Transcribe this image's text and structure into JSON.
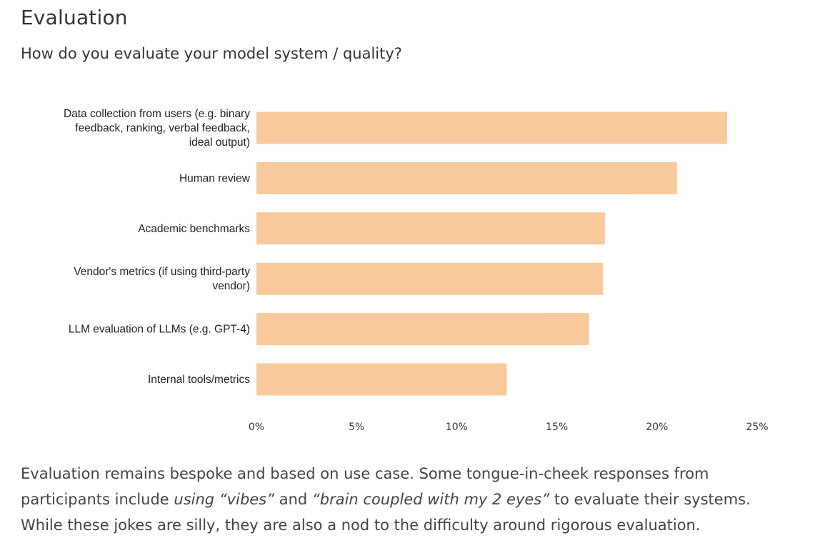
{
  "heading": "Evaluation",
  "subheading": "How do you evaluate your model system / quality?",
  "chart_data": {
    "type": "bar",
    "orientation": "horizontal",
    "title": "How do you evaluate your model system / quality?",
    "categories": [
      [
        "Data collection from users (e.g. binary",
        "feedback, ranking, verbal feedback,",
        "ideal output)"
      ],
      [
        "Human review"
      ],
      [
        "Academic benchmarks"
      ],
      [
        "Vendor's metrics (if using third-party",
        "vendor)"
      ],
      [
        "LLM evaluation of LLMs (e.g. GPT-4)"
      ],
      [
        "Internal tools/metrics"
      ]
    ],
    "values": [
      23.5,
      21.0,
      17.4,
      17.3,
      16.6,
      12.5
    ],
    "xlim": [
      0,
      25
    ],
    "xticks": [
      0,
      5,
      10,
      15,
      20,
      25
    ],
    "tick_labels": [
      "0%",
      "5%",
      "10%",
      "15%",
      "20%",
      "25%"
    ],
    "xlabel": "",
    "ylabel": "",
    "grid": false,
    "bar_color": "#f8c99d"
  },
  "body": {
    "line1": "Evaluation remains bespoke and based on use case. Some tongue-in-cheek responses from",
    "line2_pre": "participants include ",
    "line2_em1": "using “vibes”",
    "line2_mid": " and ",
    "line2_em2": "“brain coupled with my 2 eyes”",
    "line2_post": " to evaluate their systems.",
    "line3": "While these jokes are silly, they are also a nod to the difficulty around rigorous evaluation."
  }
}
